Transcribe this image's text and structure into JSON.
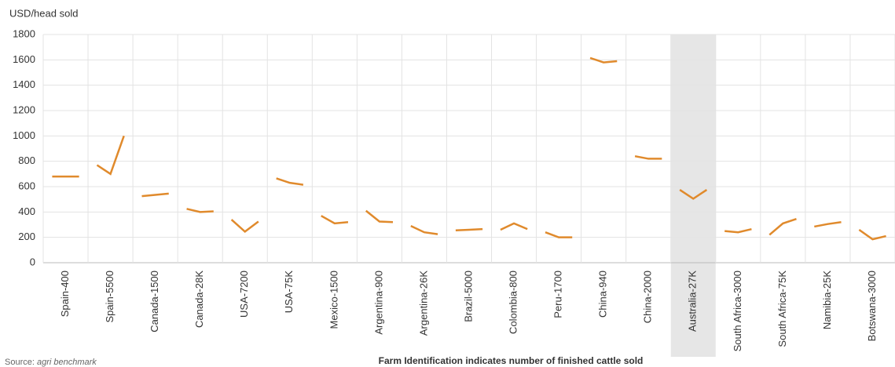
{
  "chart_data": {
    "type": "line",
    "y_axis_label": "USD/head sold",
    "x_axis_label": "Farm Identification indicates   number of finished cattle sold",
    "source_label": "Source:",
    "source": "agri benchmark",
    "categories": [
      "Spain-400",
      "Spain-5500",
      "Canada-1500",
      "Canada-28K",
      "USA-7200",
      "USA-75K",
      "Mexico-1500",
      "Argentina-900",
      "Argentina-26K",
      "Brazil-5000",
      "Colombia-800",
      "Peru-1700",
      "China-940",
      "China-2000",
      "Australia-27K",
      "South Africa-3000",
      "South Africa-75K",
      "Namibia-25K",
      "Botswana-3000"
    ],
    "values": [
      [
        680,
        680,
        680
      ],
      [
        770,
        700,
        1000
      ],
      [
        525,
        535,
        545
      ],
      [
        425,
        400,
        405
      ],
      [
        340,
        245,
        325
      ],
      [
        665,
        630,
        615
      ],
      [
        370,
        310,
        320
      ],
      [
        410,
        325,
        320
      ],
      [
        290,
        240,
        225
      ],
      [
        255,
        260,
        265
      ],
      [
        260,
        310,
        265
      ],
      [
        240,
        200,
        200
      ],
      [
        1615,
        1580,
        1590
      ],
      [
        840,
        820,
        820
      ],
      [
        575,
        505,
        575
      ],
      [
        250,
        240,
        265
      ],
      [
        220,
        310,
        345
      ],
      [
        285,
        305,
        320
      ],
      [
        260,
        185,
        210
      ]
    ],
    "color": "#e08a2c",
    "highlight": "Australia-27K",
    "ylim": [
      0,
      1800
    ],
    "yticks": [
      0,
      200,
      400,
      600,
      800,
      1000,
      1200,
      1400,
      1600,
      1800
    ],
    "grid": true
  }
}
